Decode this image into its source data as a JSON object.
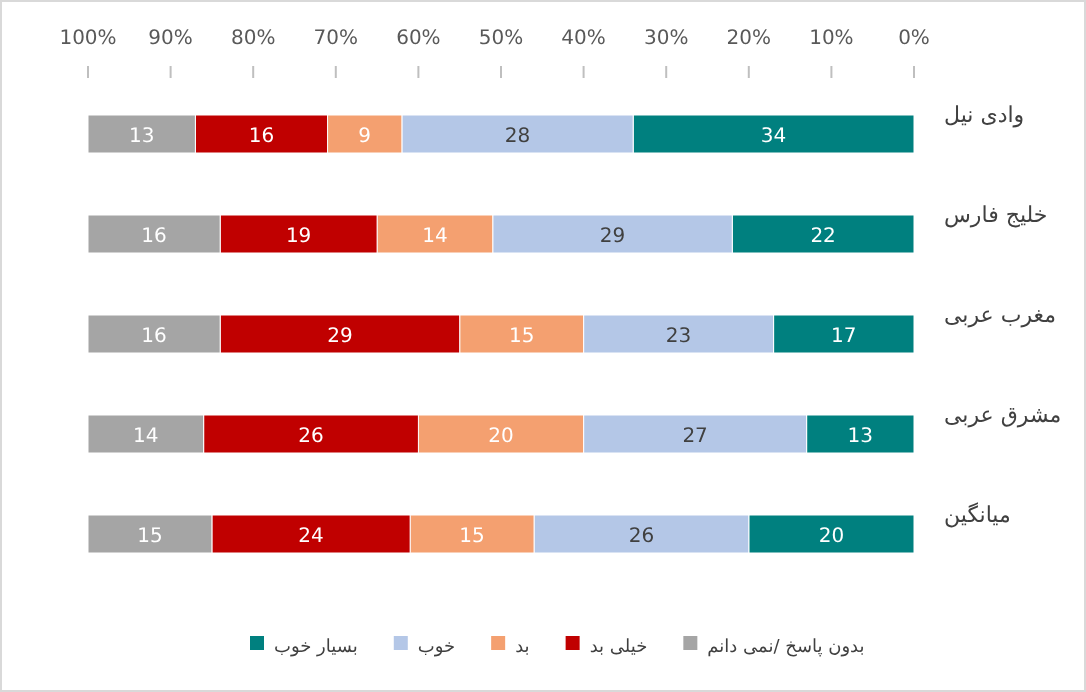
{
  "chart_data": {
    "type": "bar",
    "orientation": "horizontal",
    "stacked": true,
    "data_labels": true,
    "legend": "bottom",
    "grid": false,
    "categories": [
      "وادی نیل",
      "خلیج فارس",
      "مغرب عربی",
      "مشرق عربی",
      "میانگین"
    ],
    "xlim": [
      100,
      0
    ],
    "xticks": [
      {
        "value": 100,
        "label": "100%"
      },
      {
        "value": 90,
        "label": "90%"
      },
      {
        "value": 80,
        "label": "80%"
      },
      {
        "value": 70,
        "label": "70%"
      },
      {
        "value": 60,
        "label": "60%"
      },
      {
        "value": 50,
        "label": "50%"
      },
      {
        "value": 40,
        "label": "40%"
      },
      {
        "value": 30,
        "label": "30%"
      },
      {
        "value": 20,
        "label": "20%"
      },
      {
        "value": 10,
        "label": "10%"
      },
      {
        "value": 0,
        "label": "0%"
      }
    ],
    "series": [
      {
        "name": "بسیار خوب",
        "color": "#00807f",
        "values": [
          34,
          22,
          17,
          13,
          20
        ]
      },
      {
        "name": "خوب",
        "color": "#b4c7e7",
        "values": [
          28,
          29,
          23,
          27,
          26
        ]
      },
      {
        "name": "بد",
        "color": "#f4a070",
        "values": [
          9,
          14,
          15,
          20,
          15
        ]
      },
      {
        "name": "خیلی بد",
        "color": "#c00000",
        "values": [
          16,
          19,
          29,
          26,
          24
        ]
      },
      {
        "name": "بدون پاسخ /نمی دانم",
        "color": "#a5a5a5",
        "values": [
          13,
          16,
          16,
          14,
          15
        ]
      }
    ]
  }
}
